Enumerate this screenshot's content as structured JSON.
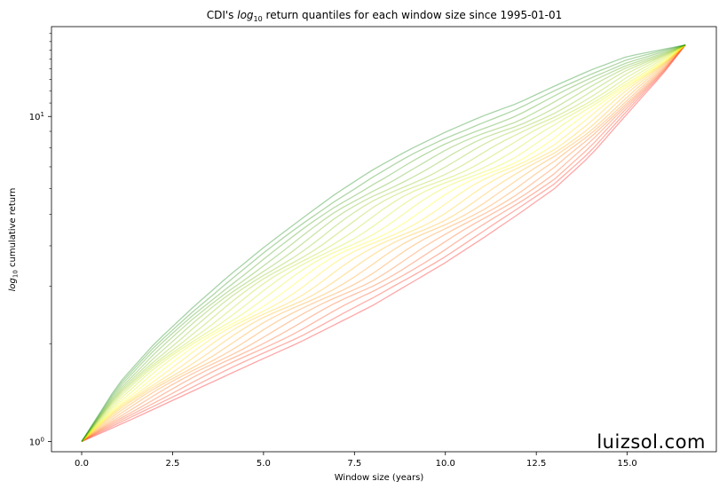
{
  "chart_data": {
    "type": "line",
    "title_prefix": "CDI's ",
    "title_log": "log",
    "title_sub": "10",
    "title_suffix": " return quantiles for each window size since 1995-01-01",
    "xlabel": "Window size (years)",
    "ylabel_log": "log",
    "ylabel_sub": "10",
    "ylabel_suffix": " cumulative return",
    "x_ticks": [
      {
        "value": 0.0,
        "label": "0.0"
      },
      {
        "value": 2.5,
        "label": "2.5"
      },
      {
        "value": 5.0,
        "label": "5.0"
      },
      {
        "value": 7.5,
        "label": "7.5"
      },
      {
        "value": 10.0,
        "label": "10.0"
      },
      {
        "value": 12.5,
        "label": "12.5"
      },
      {
        "value": 15.0,
        "label": "15.0"
      }
    ],
    "y_ticks": [
      {
        "value": 1,
        "base": "10",
        "exp": "0"
      },
      {
        "value": 10,
        "base": "10",
        "exp": "1"
      }
    ],
    "xlim": [
      -0.83,
      17.45
    ],
    "ylim": [
      0.93,
      18.9
    ],
    "y_scale": "log",
    "quantile_colormap": [
      "#ff0000",
      "#ffff00",
      "#008000"
    ],
    "line_opacity": 0.35,
    "quantile_count": 21,
    "x_end": 16.6,
    "y_end": 16.6,
    "min_quantile": {
      "x": [
        0,
        1,
        2,
        3,
        4,
        5,
        6,
        7,
        8,
        9,
        10,
        11,
        12,
        13,
        14,
        15,
        16,
        16.6
      ],
      "y": [
        1.0,
        1.12,
        1.26,
        1.42,
        1.6,
        1.8,
        2.02,
        2.3,
        2.62,
        3.05,
        3.55,
        4.2,
        5.0,
        6.0,
        7.6,
        10.2,
        13.6,
        16.6
      ]
    },
    "max_quantile": {
      "x": [
        0,
        1,
        2,
        3,
        4,
        5,
        6,
        7,
        8,
        9,
        10,
        11,
        12,
        13,
        14,
        15,
        16,
        16.6
      ],
      "y": [
        1.0,
        1.5,
        2.0,
        2.55,
        3.2,
        3.95,
        4.8,
        5.8,
        6.85,
        7.9,
        8.95,
        10.0,
        11.0,
        12.4,
        13.9,
        15.3,
        16.1,
        16.6
      ]
    }
  },
  "watermark": "luizsol.com"
}
